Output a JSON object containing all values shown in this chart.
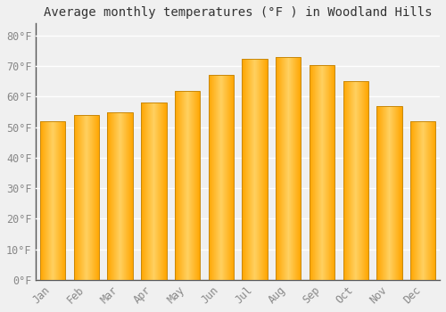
{
  "months": [
    "Jan",
    "Feb",
    "Mar",
    "Apr",
    "May",
    "Jun",
    "Jul",
    "Aug",
    "Sep",
    "Oct",
    "Nov",
    "Dec"
  ],
  "values": [
    52,
    54,
    55,
    58,
    62,
    67,
    72.5,
    73,
    70.5,
    65,
    57,
    52
  ],
  "bar_color_main": "#FFA500",
  "bar_color_light": "#FFD060",
  "bar_color_edge": "#C8880A",
  "title": "Average monthly temperatures (°F ) in Woodland Hills",
  "ylabel_ticks": [
    "0°F",
    "10°F",
    "20°F",
    "30°F",
    "40°F",
    "50°F",
    "60°F",
    "70°F",
    "80°F"
  ],
  "ytick_values": [
    0,
    10,
    20,
    30,
    40,
    50,
    60,
    70,
    80
  ],
  "ylim": [
    0,
    84
  ],
  "background_color": "#f0f0f0",
  "plot_bg_color": "#f0f0f0",
  "grid_color": "#ffffff",
  "title_fontsize": 10,
  "tick_fontsize": 8.5,
  "bar_width": 0.75
}
